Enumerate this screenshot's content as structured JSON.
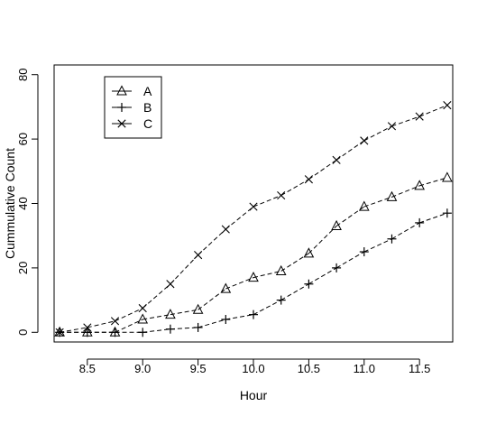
{
  "chart_data": {
    "type": "line",
    "title": "",
    "xlabel": "Hour",
    "ylabel": "Cummulative Count",
    "xlim": [
      8.2,
      11.8
    ],
    "ylim": [
      -3,
      83
    ],
    "x_ticks": [
      8.5,
      9.0,
      9.5,
      10.0,
      10.5,
      11.0,
      11.5
    ],
    "x_tick_labels": [
      "8.5",
      "9.0",
      "9.5",
      "10.0",
      "10.5",
      "11.0",
      "11.5"
    ],
    "y_ticks": [
      0,
      20,
      40,
      60,
      80
    ],
    "y_tick_labels": [
      "0",
      "20",
      "40",
      "60",
      "80"
    ],
    "grid": false,
    "legend_position": "top-left",
    "line_style": "dashed",
    "x": [
      8.25,
      8.5,
      8.75,
      9.0,
      9.25,
      9.5,
      9.75,
      10.0,
      10.25,
      10.5,
      10.75,
      11.0,
      11.25,
      11.5,
      11.75
    ],
    "series": [
      {
        "name": "A",
        "marker": "triangle",
        "values": [
          0,
          0,
          0,
          4,
          5.5,
          7,
          13.5,
          17,
          19,
          24.5,
          33,
          39,
          42,
          45.5,
          48
        ]
      },
      {
        "name": "B",
        "marker": "plus",
        "values": [
          0,
          0,
          0,
          0,
          1,
          1.5,
          4,
          5.5,
          10,
          15,
          20,
          25,
          29,
          34,
          37
        ]
      },
      {
        "name": "C",
        "marker": "x",
        "values": [
          0,
          1.5,
          3.5,
          7.5,
          15,
          24,
          32,
          39,
          42.5,
          47.5,
          53.5,
          59.5,
          64,
          67,
          70.5
        ]
      }
    ]
  }
}
